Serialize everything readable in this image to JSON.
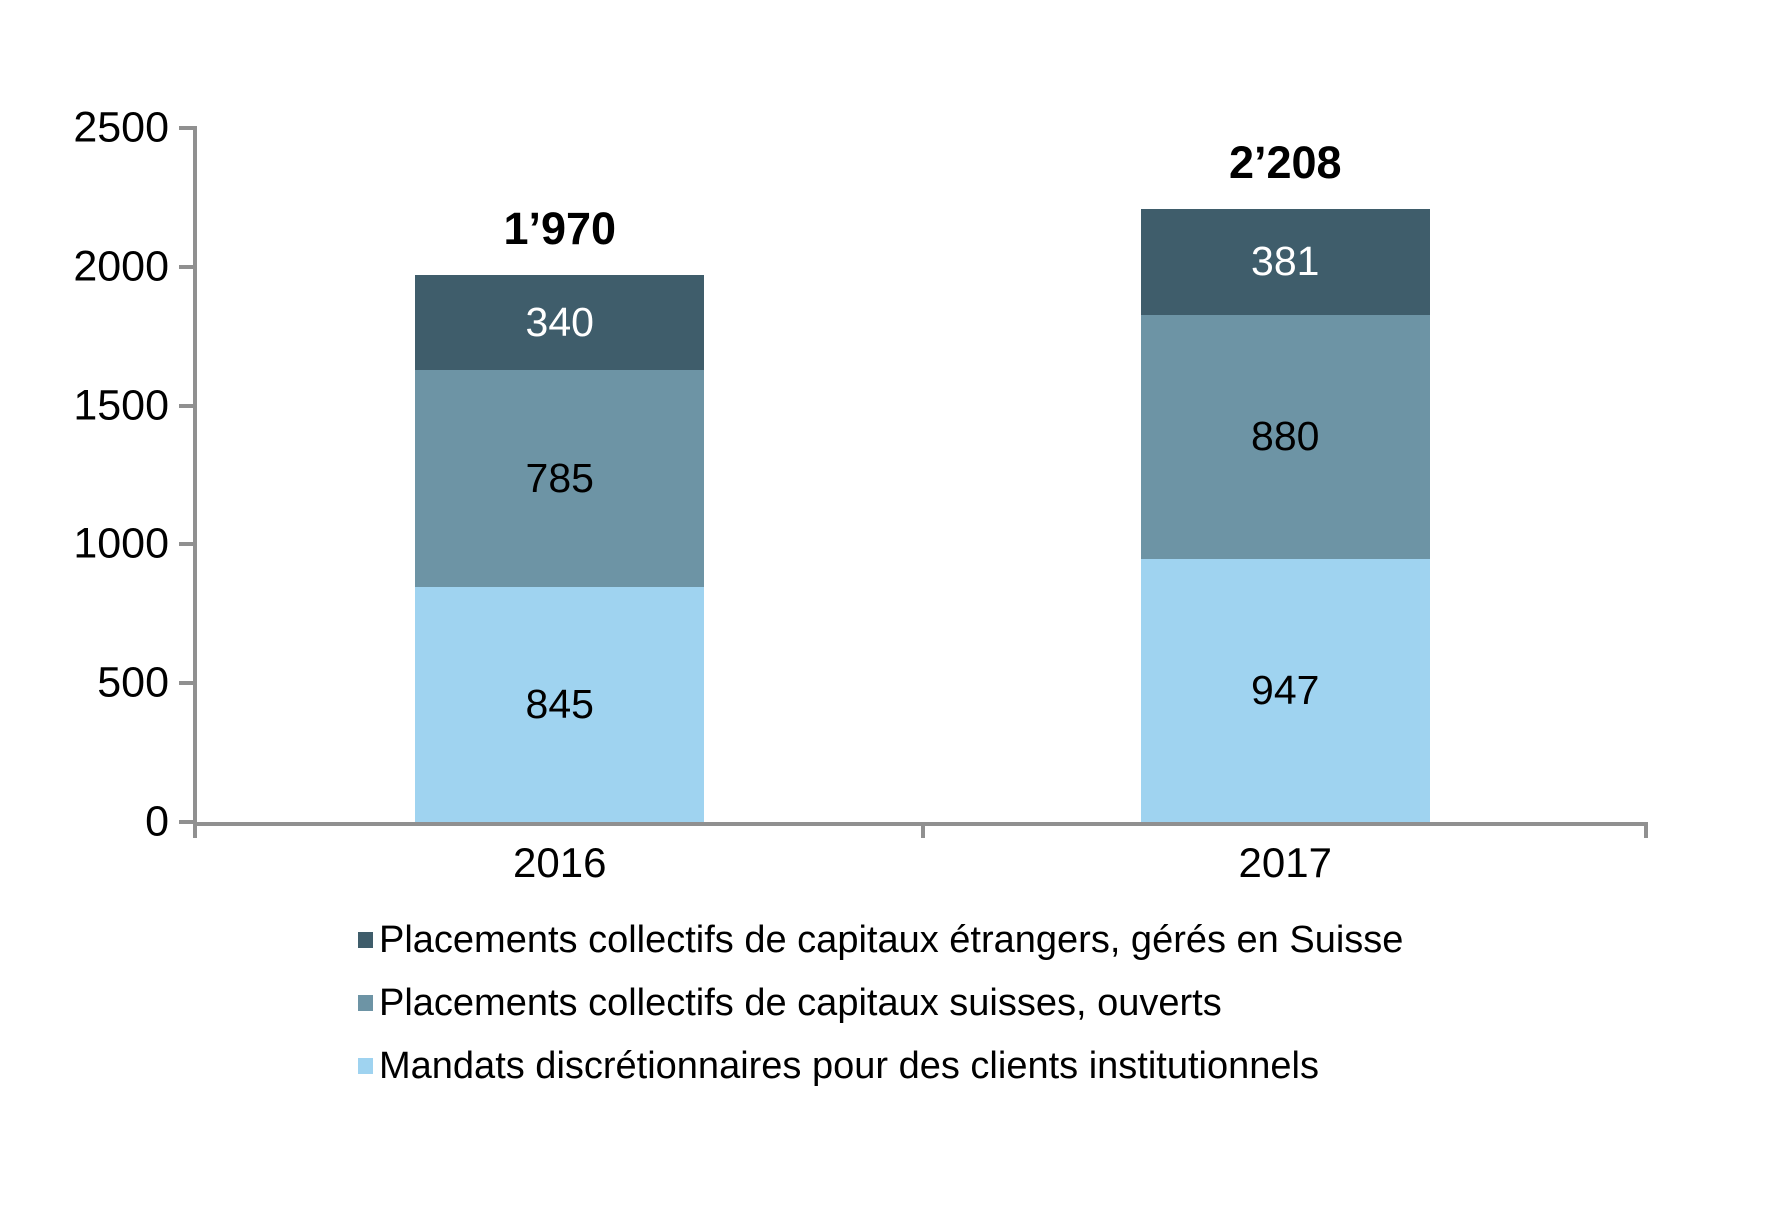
{
  "chart_data": {
    "type": "bar",
    "subtype": "stacked-column",
    "title": "",
    "xlabel": "",
    "ylabel": "",
    "categories": [
      "2016",
      "2017"
    ],
    "series": [
      {
        "name": "Mandats discrétionnaires pour des clients institutionnels",
        "values": [
          845,
          947
        ],
        "color": "#9FD3F0",
        "value_label_color": "#000000"
      },
      {
        "name": "Placements collectifs de capitaux suisses, ouverts",
        "values": [
          785,
          880
        ],
        "color": "#6D94A5",
        "value_label_color": "#000000"
      },
      {
        "name": "Placements collectifs de capitaux étrangers, gérés en Suisse",
        "values": [
          340,
          381
        ],
        "color": "#3F5D6B",
        "value_label_color": "#FFFFFF"
      }
    ],
    "totals": [
      1970,
      2208
    ],
    "totals_display": [
      "1’970",
      "2’208"
    ],
    "ylim": [
      0,
      2500
    ],
    "yticks": [
      0,
      500,
      1000,
      1500,
      2000,
      2500
    ],
    "grid": false,
    "legend_position": "bottom-left",
    "legend_order_top_to_bottom": [
      "Placements collectifs de capitaux étrangers, gérés en Suisse",
      "Placements collectifs de capitaux suisses, ouverts",
      "Mandats discrétionnaires pour des clients institutionnels"
    ],
    "axis_color": "#909090",
    "background_color": "#FFFFFF"
  }
}
